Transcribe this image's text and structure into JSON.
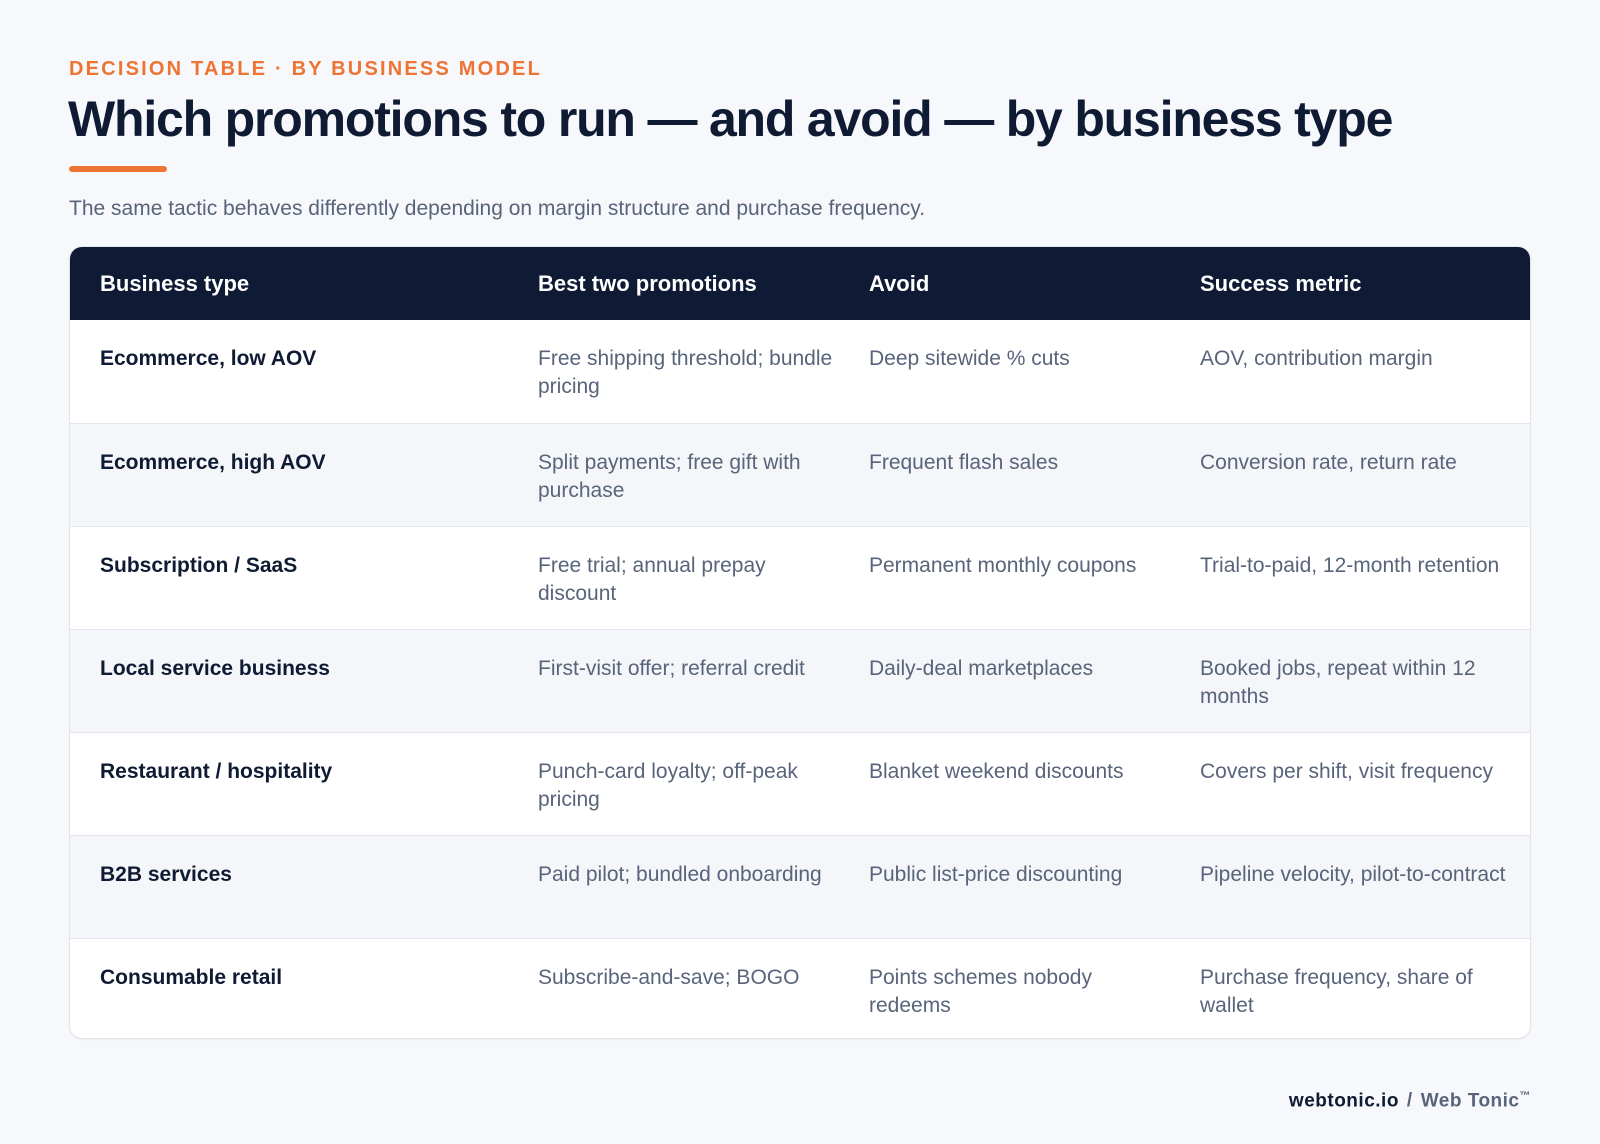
{
  "header": {
    "eyebrow": "DECISION TABLE · BY BUSINESS MODEL",
    "title": "Which promotions to run — and avoid — by business type",
    "subtitle": "The same tactic behaves differently depending on margin structure and purchase frequency."
  },
  "table": {
    "columns": [
      "Business type",
      "Best two promotions",
      "Avoid",
      "Success metric"
    ],
    "rows": [
      {
        "type": "Ecommerce, low AOV",
        "best": "Free shipping threshold; bundle pricing",
        "avoid": "Deep sitewide % cuts",
        "metric": "AOV, contribution margin"
      },
      {
        "type": "Ecommerce, high AOV",
        "best": "Split payments; free gift with purchase",
        "avoid": "Frequent flash sales",
        "metric": "Conversion rate, return rate"
      },
      {
        "type": "Subscription / SaaS",
        "best": "Free trial; annual prepay discount",
        "avoid": "Permanent monthly coupons",
        "metric": "Trial-to-paid, 12-month retention"
      },
      {
        "type": "Local service business",
        "best": "First-visit offer; referral credit",
        "avoid": "Daily-deal marketplaces",
        "metric": "Booked jobs, repeat within 12 months"
      },
      {
        "type": "Restaurant / hospitality",
        "best": "Punch-card loyalty; off-peak pricing",
        "avoid": "Blanket weekend discounts",
        "metric": "Covers per shift, visit frequency"
      },
      {
        "type": "B2B services",
        "best": "Paid pilot; bundled onboarding",
        "avoid": "Public list-price discounting",
        "metric": "Pipeline velocity, pilot-to-contract"
      },
      {
        "type": "Consumable retail",
        "best": "Subscribe-and-save; BOGO",
        "avoid": "Points schemes nobody redeems",
        "metric": "Purchase frequency, share of wallet"
      }
    ]
  },
  "footer": {
    "domain": "webtonic.io",
    "separator": "/",
    "brand": "Web Tonic",
    "trademark": "™"
  }
}
